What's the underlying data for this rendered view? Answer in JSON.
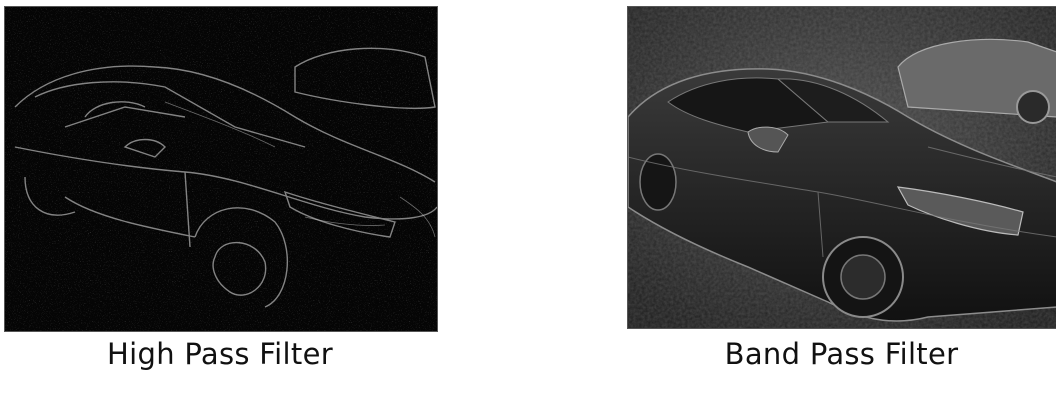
{
  "panels": [
    {
      "caption": "High Pass Filter"
    },
    {
      "caption": "Band Pass Filter"
    }
  ]
}
